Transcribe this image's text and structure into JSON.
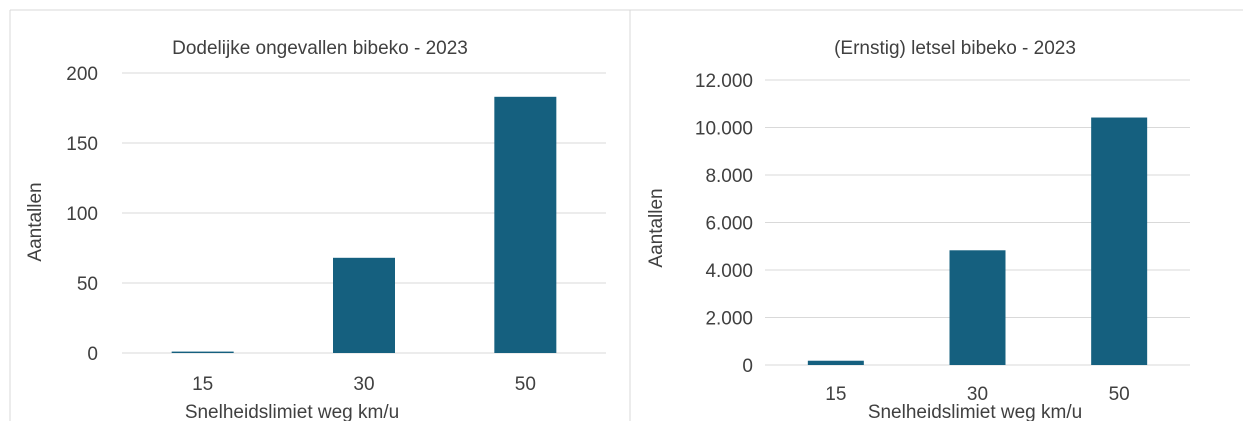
{
  "charts": [
    {
      "title": "Dodelijke ongevallen bibeko - 2023",
      "xlabel": "Snelheidslimiet weg km/u",
      "ylabel": "Aantallen",
      "ytick_labels": [
        "0",
        "50",
        "100",
        "150",
        "200"
      ]
    },
    {
      "title": "(Ernstig) letsel bibeko - 2023",
      "xlabel": "Snelheidslimiet weg km/u",
      "ylabel": "Aantallen",
      "ytick_labels": [
        "0",
        "2.000",
        "4.000",
        "6.000",
        "8.000",
        "10.000",
        "12.000"
      ]
    }
  ],
  "chart_data": [
    {
      "type": "bar",
      "title": "Dodelijke ongevallen bibeko - 2023",
      "xlabel": "Snelheidslimiet weg km/u",
      "ylabel": "Aantallen",
      "categories": [
        "15",
        "30",
        "50"
      ],
      "values": [
        1,
        68,
        183
      ],
      "ylim": [
        0,
        200
      ],
      "yticks": [
        0,
        50,
        100,
        150,
        200
      ],
      "grid": true,
      "legend": "none",
      "bar_color": "#15607F"
    },
    {
      "type": "bar",
      "title": "(Ernstig) letsel bibeko - 2023",
      "xlabel": "Snelheidslimiet weg km/u",
      "ylabel": "Aantallen",
      "categories": [
        "15",
        "30",
        "50"
      ],
      "values": [
        180,
        4830,
        10420
      ],
      "ylim": [
        0,
        12000
      ],
      "yticks": [
        0,
        2000,
        4000,
        6000,
        8000,
        10000,
        12000
      ],
      "grid": true,
      "legend": "none",
      "bar_color": "#15607F"
    }
  ],
  "colors": {
    "bar": "#15607F",
    "grid": "#D9D9D9",
    "border": "#D9D9D9",
    "text": "#404040"
  }
}
